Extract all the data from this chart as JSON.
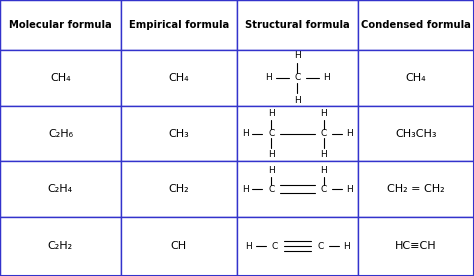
{
  "fig_width": 4.74,
  "fig_height": 2.76,
  "dpi": 100,
  "bg_color": "#ffffff",
  "border_color": "#3333cc",
  "text_color": "#000000",
  "headers": [
    "Molecular formula",
    "Empirical formula",
    "Structural formula",
    "Condensed formula"
  ],
  "cols": [
    0.0,
    0.255,
    0.5,
    0.755,
    1.0
  ],
  "rows": [
    1.0,
    0.82,
    0.615,
    0.415,
    0.215,
    0.0
  ],
  "mol_formulas": [
    "CH₄",
    "C₂H₆",
    "C₂H₄",
    "C₂H₂"
  ],
  "emp_formulas": [
    "CH₄",
    "CH₃",
    "CH₂",
    "CH"
  ],
  "condensed_formulas": [
    "CH₄",
    "CH₃CH₃",
    "CH₂ = CH₂",
    "HC≡CH"
  ],
  "font_size_header": 7.2,
  "font_size_cell": 8.0,
  "font_size_struct": 6.5,
  "border_lw": 1.0
}
